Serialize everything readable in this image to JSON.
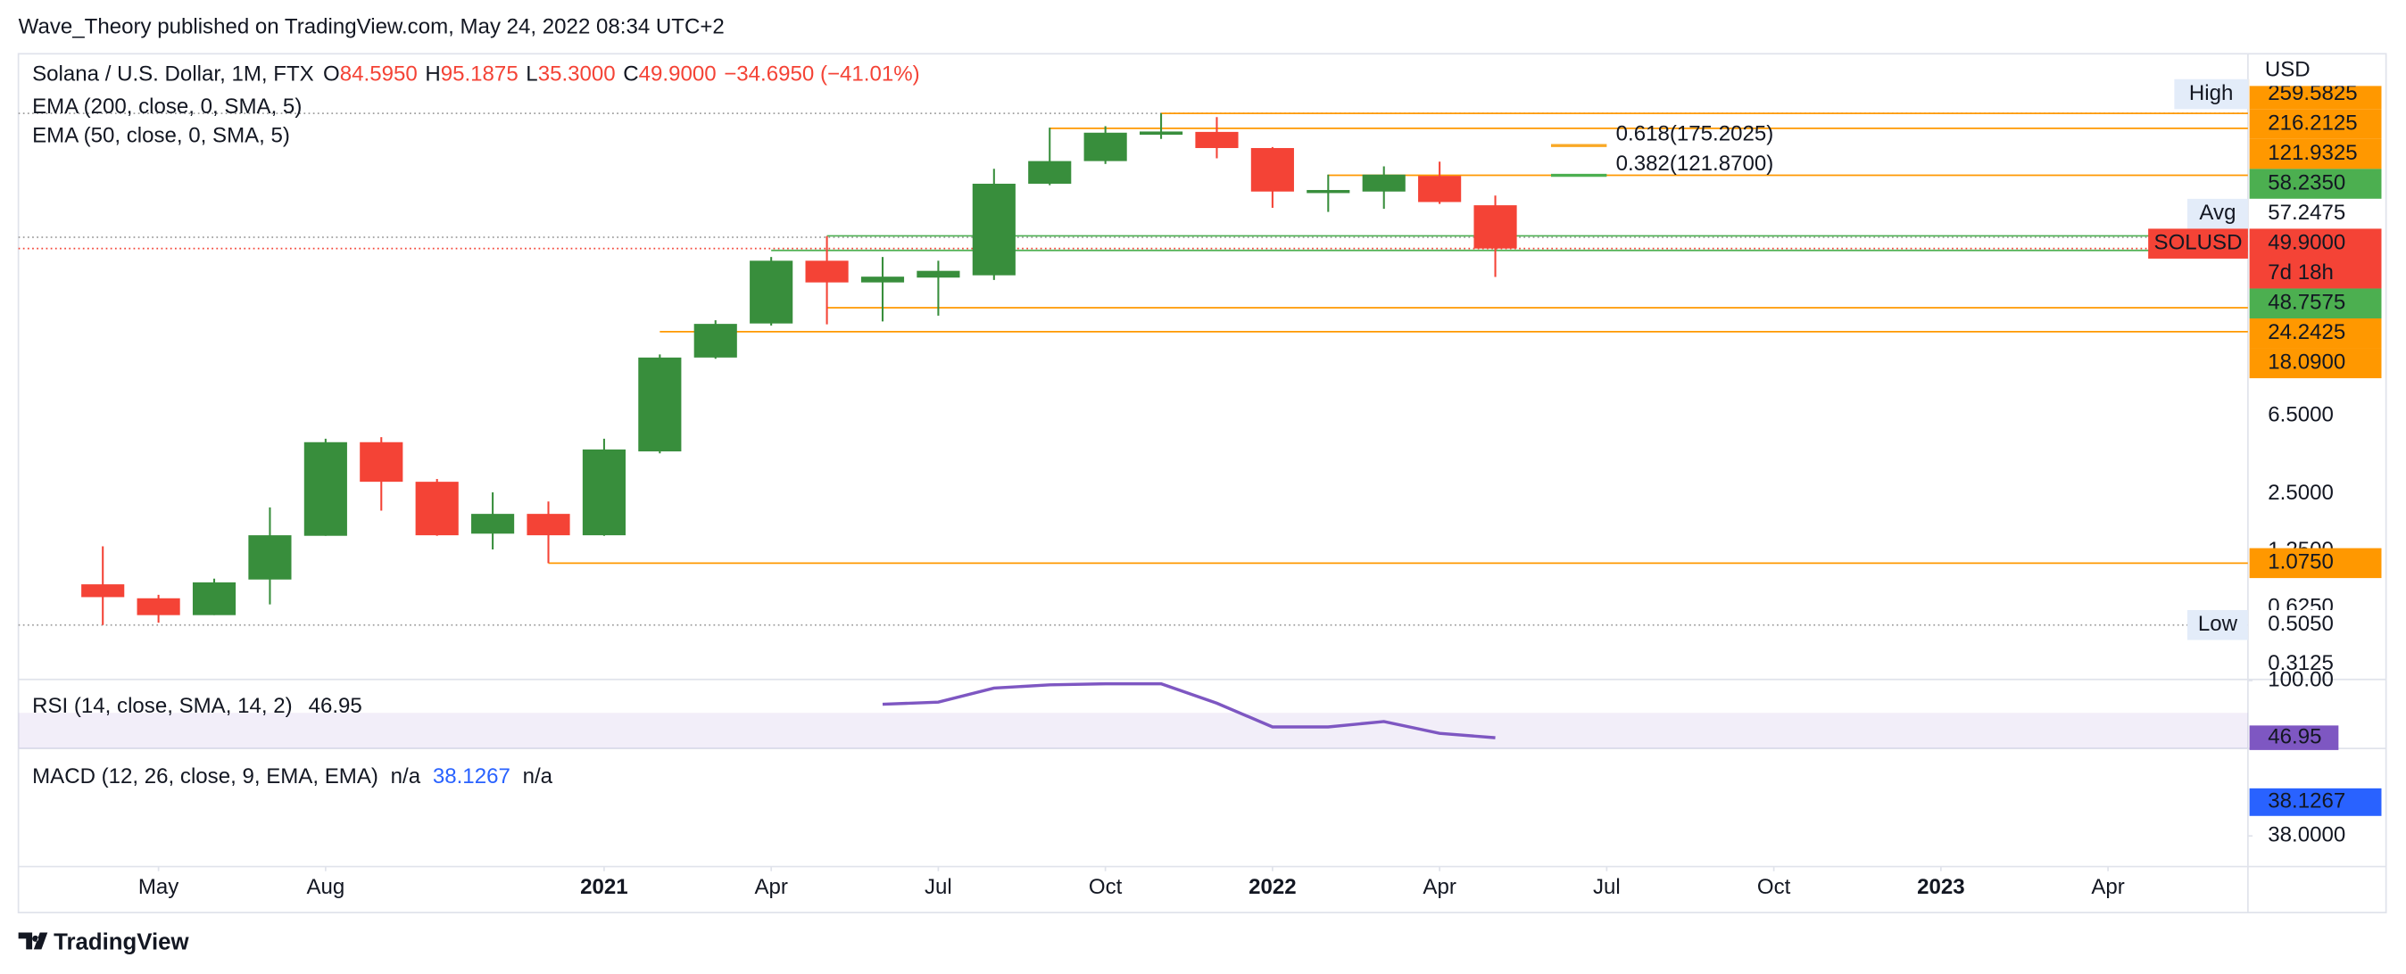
{
  "header": "Wave_Theory published on TradingView.com, May 24, 2022 08:34 UTC+2",
  "footer": "TradingView",
  "chart_data": {
    "type": "candlestick",
    "legend": {
      "symbol": "Solana / U.S. Dollar, 1M, FTX",
      "items": [
        {
          "key": "O",
          "text": "84.5950"
        },
        {
          "key": "H",
          "text": "95.1875"
        },
        {
          "key": "L",
          "text": "35.3000"
        },
        {
          "key": "C",
          "text": "49.9000"
        }
      ],
      "change": "−34.6950 (−41.01%)",
      "indicators": [
        "EMA (200, close, 0, SMA, 5)",
        "EMA (50, close, 0, SMA, 5)"
      ]
    },
    "currency": "USD",
    "categories": [
      "2020-04",
      "2020-05",
      "2020-06",
      "2020-07",
      "2020-08",
      "2020-09",
      "2020-10",
      "2020-11",
      "2020-12",
      "2021-01",
      "2021-02",
      "2021-03",
      "2021-04",
      "2021-05",
      "2021-06",
      "2021-07",
      "2021-08",
      "2021-09",
      "2021-10",
      "2021-11",
      "2021-12",
      "2022-01",
      "2022-02",
      "2022-03",
      "2022-04",
      "2022-05"
    ],
    "open": [
      0.83,
      0.7,
      0.57,
      0.88,
      1.5,
      4.7,
      2.9,
      1.54,
      1.96,
      1.51,
      4.2,
      13.2,
      20,
      43,
      33,
      35,
      36,
      110,
      145,
      200,
      207,
      170,
      98,
      100,
      121,
      84.595
    ],
    "high": [
      1.32,
      0.73,
      0.89,
      2.12,
      4.9,
      5.0,
      3.0,
      2.55,
      2.28,
      4.9,
      13.7,
      20.8,
      45,
      58,
      45,
      43,
      132,
      218,
      222,
      259.5825,
      248,
      172,
      123,
      136,
      144,
      95.1875
    ],
    "low": [
      0.505,
      0.52,
      0.57,
      0.65,
      1.5,
      2.04,
      1.5,
      1.27,
      1.075,
      1.5,
      4.1,
      13.0,
      19.5,
      19.8,
      20.5,
      22,
      34,
      108,
      140,
      190,
      150,
      82,
      78,
      81,
      86,
      35.3
    ],
    "close": [
      0.71,
      0.57,
      0.85,
      1.51,
      4.7,
      2.9,
      1.51,
      1.96,
      1.51,
      4.3,
      13.2,
      19.9,
      43,
      33,
      35.4,
      38,
      110,
      145,
      205,
      208,
      170,
      100,
      100,
      123,
      88,
      49.9
    ],
    "up_color": "#388e3c",
    "down_color": "#f44336",
    "log_scale": true,
    "ylim": [
      0.26,
      537
    ],
    "yticks": [
      {
        "value": 6.5,
        "label": "6.5000"
      },
      {
        "value": 2.5,
        "label": "2.5000"
      },
      {
        "value": 1.25,
        "label": "1.2500"
      },
      {
        "value": 0.625,
        "label": "0.6250"
      },
      {
        "value": 0.3125,
        "label": "0.3125"
      }
    ],
    "xticks": [
      {
        "value": "2020-05",
        "label": "May"
      },
      {
        "value": "2020-08",
        "label": "Aug"
      },
      {
        "value": "2021-01",
        "label": "2021"
      },
      {
        "value": "2021-04",
        "label": "Apr"
      },
      {
        "value": "2021-07",
        "label": "Jul"
      },
      {
        "value": "2021-10",
        "label": "Oct"
      },
      {
        "value": "2022-01",
        "label": "2022"
      },
      {
        "value": "2022-04",
        "label": "Apr"
      },
      {
        "value": "2022-07",
        "label": "Jul"
      },
      {
        "value": "2022-10",
        "label": "Oct"
      },
      {
        "value": "2023-01",
        "label": "2023"
      },
      {
        "value": "2023-04",
        "label": "Apr"
      }
    ],
    "levels": [
      {
        "value": 259.5825,
        "color": "#9e9e9e",
        "style": "dotted"
      },
      {
        "value": 259.5825,
        "color": "#ff9800",
        "from": "2021-11"
      },
      {
        "value": 216.2125,
        "color": "#ff9800",
        "from": "2021-09"
      },
      {
        "value": 121.9325,
        "color": "#ff9800",
        "from": "2022-02"
      },
      {
        "value": 57.2475,
        "color": "#9e9e9e",
        "style": "dotted"
      },
      {
        "value": 58.235,
        "color": "#4caf50",
        "from": "2021-05"
      },
      {
        "value": 49.9,
        "color": "#f44336",
        "style": "dotted"
      },
      {
        "value": 48.7575,
        "color": "#4caf50",
        "from": "2021-04"
      },
      {
        "value": 24.2425,
        "color": "#ff9800",
        "from": "2021-05"
      },
      {
        "value": 18.09,
        "color": "#ff9800",
        "from": "2021-02"
      },
      {
        "value": 1.075,
        "color": "#ff9800",
        "from": "2020-12"
      },
      {
        "value": 0.505,
        "color": "#9e9e9e",
        "style": "dotted"
      }
    ],
    "fib": [
      {
        "label": "0.618(175.2025)",
        "value": 175.2025,
        "color": "#f9a825",
        "from": "2022-06",
        "to": "2022-07"
      },
      {
        "label": "0.382(121.8700)",
        "value": 121.87,
        "color": "#4caf50",
        "from": "2022-06",
        "to": "2022-07"
      }
    ],
    "price_labels": [
      {
        "value": 259.5825,
        "label": "259.5825",
        "color": "#ff9800",
        "text_color": "#ffffff",
        "tag": "High",
        "tag_color": "#e3ecf9",
        "tag_text_color": "#131722"
      },
      {
        "value": 216.2125,
        "label": "216.2125",
        "color": "#ff9800",
        "text_color": "#131722"
      },
      {
        "value": 121.9325,
        "label": "121.9325",
        "color": "#ff9800",
        "text_color": "#131722"
      },
      {
        "value": 58.235,
        "label": "58.2350",
        "color": "#4caf50",
        "text_color": "#ffffff"
      },
      {
        "value": 57.2475,
        "label": "57.2475",
        "color": "#ffffff",
        "text_color": "#131722",
        "tag": "Avg",
        "tag_color": "#e3ecf9",
        "tag_text_color": "#131722"
      },
      {
        "value": 49.9,
        "label": "49.9000",
        "color": "#f44336",
        "text_color": "#ffffff",
        "tag": "SOLUSD",
        "tag_color": "#f44336",
        "tag_text_color": "#ffffff",
        "countdown": "7d 18h"
      },
      {
        "value": 48.7575,
        "label": "48.7575",
        "color": "#4caf50",
        "text_color": "#ffffff"
      },
      {
        "value": 24.2425,
        "label": "24.2425",
        "color": "#ff9800",
        "text_color": "#131722"
      },
      {
        "value": 18.09,
        "label": "18.0900",
        "color": "#ff9800",
        "text_color": "#131722"
      },
      {
        "value": 1.075,
        "label": "1.0750",
        "color": "#ff9800",
        "text_color": "#131722"
      },
      {
        "value": 0.505,
        "label": "0.5050",
        "color": "#ffffff",
        "text_color": "#131722",
        "tag": "Low",
        "tag_color": "#e3ecf9",
        "tag_text_color": "#131722"
      }
    ],
    "rsi": {
      "title": "RSI (14, close, SMA, 14, 2)",
      "color": "#7e57c2",
      "start": "2021-06",
      "values": [
        78,
        80,
        93,
        96,
        97,
        97,
        79,
        57,
        57,
        62,
        51,
        46.95
      ],
      "ylim": [
        37,
        101
      ],
      "yticks": [
        {
          "value": 100,
          "label": "100.00"
        }
      ],
      "band": [
        30,
        70
      ]
    },
    "macd": {
      "title": "MACD (12, 26, close, 9, EMA, EMA)",
      "histogram_label": "n/a",
      "signal_label": "n/a",
      "value": 38.1267,
      "color": "#2962ff",
      "ylim": [
        37.885,
        38.328
      ],
      "yticks": [
        {
          "value": 38,
          "label": "38.0000"
        }
      ]
    }
  }
}
